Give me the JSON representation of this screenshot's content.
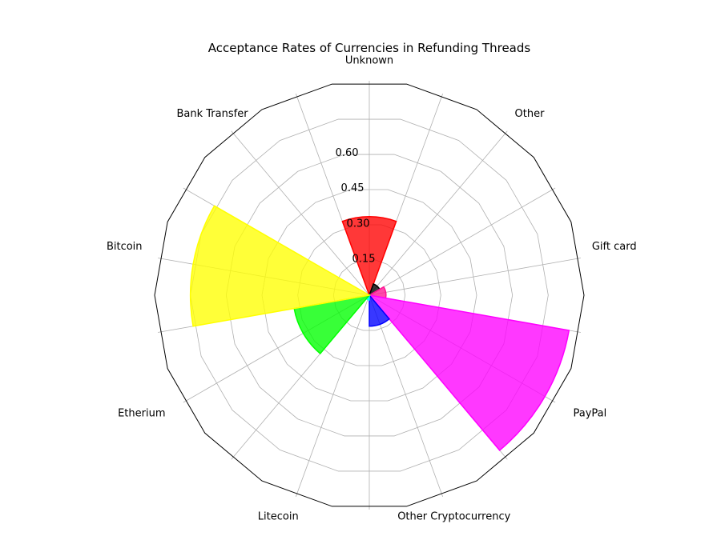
{
  "chart_data": {
    "type": "polar-bar",
    "title": "Acceptance Rates of Currencies in Refunding Threads",
    "categories": [
      "Unknown",
      "Other",
      "Gift card",
      "PayPal",
      "Other Cryptocurrency",
      "Litecoin",
      "Etherium",
      "Bitcoin",
      "Bank Transfer"
    ],
    "values": [
      0.33,
      0.05,
      0.07,
      0.85,
      0.13,
      0.02,
      0.32,
      0.75,
      0.0
    ],
    "colors": [
      "#ff0000",
      "#000000",
      "#ff1493",
      "#ff00ff",
      "#0000ff",
      "#00ffff",
      "#00ff00",
      "#ffff00",
      "#ffa500"
    ],
    "radial_ticks": [
      "0.15",
      "0.30",
      "0.45",
      "0.60"
    ],
    "rlim": [
      0,
      0.9
    ],
    "grid": true
  }
}
